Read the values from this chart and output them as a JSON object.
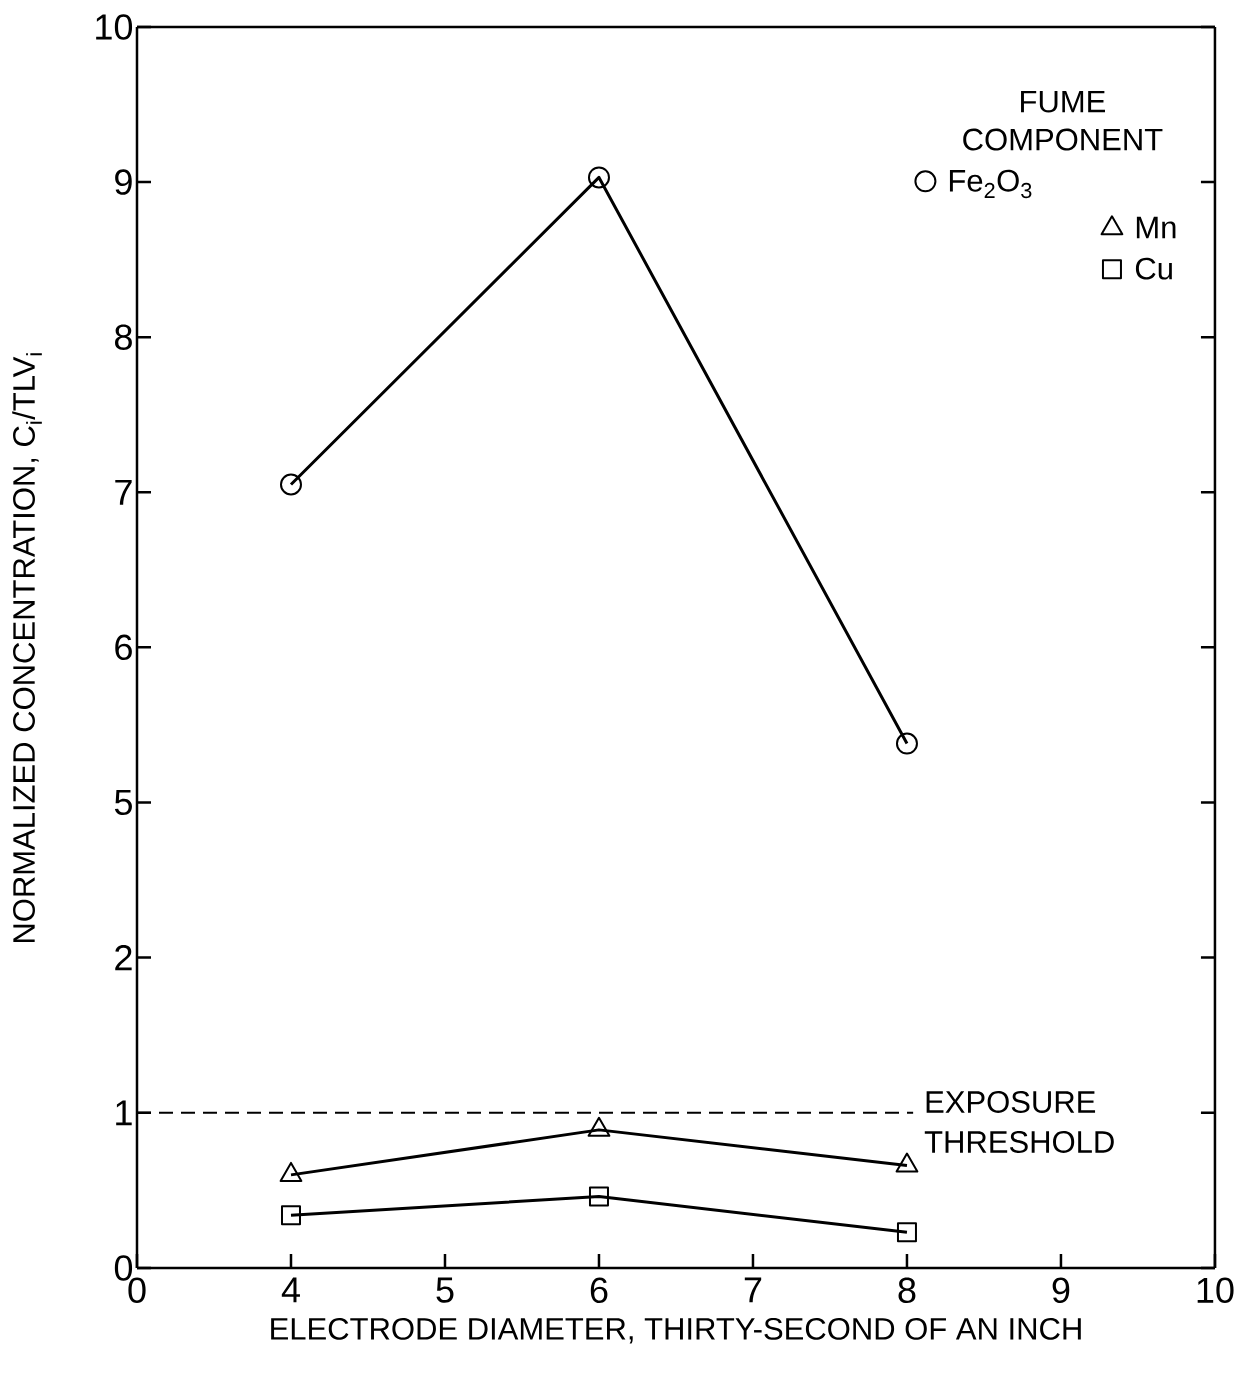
{
  "chart_data": [
    {
      "type": "line",
      "categories": [
        "0",
        "4",
        "5",
        "6",
        "7",
        "8",
        "9",
        "10"
      ],
      "ylim": [
        4.5,
        10
      ],
      "yticks": [
        5,
        6,
        7,
        8,
        9,
        10
      ],
      "tick_labels": "y",
      "ylabel": "NORMALIZED CONCENTRATION,   C$_{i}$/TLV$_{i}$",
      "legend": "top right",
      "legend_title": "FUME COMPONENT",
      "grid": false,
      "series": [
        {
          "name": "Fe$_{2}$O$_{3}$",
          "color": "#000000",
          "marker": "circle",
          "values": [
            null,
            7.05,
            null,
            9.03,
            null,
            5.38,
            null,
            null
          ]
        }
      ]
    },
    {
      "type": "line",
      "categories": [
        "0",
        "4",
        "5",
        "6",
        "7",
        "8",
        "9",
        "10"
      ],
      "ylim": [
        0,
        2.5
      ],
      "yticks": [
        0,
        1,
        2
      ],
      "xlabel": "ELECTRODE DIAMETER, THIRTY-SECOND OF AN INCH",
      "grid": false,
      "legend": "top right",
      "ref_lines": [
        {
          "axis": "y",
          "value": 1,
          "label": "EXPOSURE THRESHOLD",
          "line_style": "dashed"
        }
      ],
      "series": [
        {
          "name": "Mn",
          "color": "#000000",
          "marker": "triangle",
          "values": [
            null,
            0.6,
            null,
            0.89,
            null,
            0.66,
            null,
            null
          ]
        },
        {
          "name": "Cu",
          "color": "#000000",
          "marker": "square",
          "values": [
            null,
            0.34,
            null,
            0.46,
            null,
            0.23,
            null,
            null
          ]
        }
      ]
    }
  ]
}
